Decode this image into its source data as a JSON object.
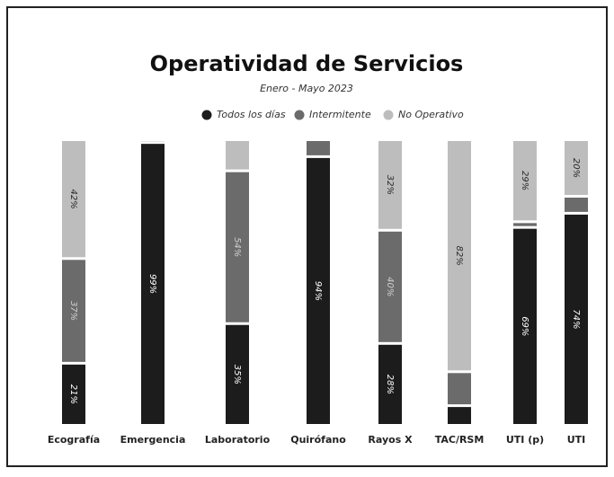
{
  "chart_data": {
    "type": "stacked_bar",
    "title": "Operatividad de Servicios",
    "subtitle": "Enero - Mayo 2023",
    "categories": [
      "Ecografía",
      "Emergencia",
      "Laboratorio",
      "Quirófano",
      "Rayos X",
      "TAC/RSM",
      "UTI (p)",
      "UTI"
    ],
    "ylim": [
      0,
      100
    ],
    "series": [
      {
        "name": "Todos los días",
        "color": "#1c1c1c",
        "label_color": "#ffffff",
        "values": [
          21,
          99,
          35,
          94,
          28,
          6,
          69,
          74
        ],
        "value_labels": [
          "21%",
          "99%",
          "35%",
          "94%",
          "28%",
          null,
          "69%",
          "74%"
        ]
      },
      {
        "name": "Intermitente",
        "color": "#6b6b6b",
        "label_color": "#cfcfcf",
        "values": [
          37,
          1,
          54,
          6,
          40,
          12,
          2,
          6
        ],
        "value_labels": [
          "37%",
          null,
          "54%",
          null,
          "40%",
          null,
          null,
          null
        ]
      },
      {
        "name": "No Operativo",
        "color": "#bdbdbd",
        "label_color": "#2a2a2a",
        "values": [
          42,
          0,
          11,
          0,
          32,
          82,
          29,
          20
        ],
        "value_labels": [
          "42%",
          null,
          null,
          null,
          "32%",
          "82%",
          "29%",
          "20%"
        ]
      }
    ]
  }
}
